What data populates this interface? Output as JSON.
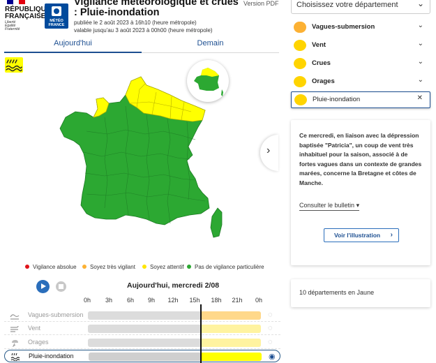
{
  "header": {
    "rf_name": "RÉPUBLIQUE\nFRANÇAISE",
    "rf_motto": "Liberté\nÉgalité\nFraternité",
    "mf_name": "MÉTÉO\nFRANCE",
    "title": "Vigilance météorologique et crues : Pluie-inondation",
    "published": "publiée le 2 août 2023 à 16h10 (heure métropole)",
    "valid_until": "valable jusqu'au 3 août 2023 à 00h00 (heure métropole)",
    "pdf_link": "Version PDF"
  },
  "tabs": [
    {
      "label": "Aujourd'hui",
      "active": true
    },
    {
      "label": "Demain",
      "active": false
    }
  ],
  "map": {
    "active_phenomenon_icon": "rain-flood-icon",
    "colors": {
      "green": "#2ca832",
      "yellow": "#ffff00",
      "orange": "#fcb134",
      "red": "#e0131a"
    },
    "next_icon": "chevron-right-icon"
  },
  "legend": [
    {
      "label": "Vigilance absolue",
      "color": "#e0131a"
    },
    {
      "label": "Soyez très vigilant",
      "color": "#fcb134"
    },
    {
      "label": "Soyez attentif",
      "color": "#ffe600"
    },
    {
      "label": "Pas de vigilance particulière",
      "color": "#2ca832"
    }
  ],
  "timeline": {
    "day_title": "Aujourd'hui, mercredi 2/08",
    "hours": [
      "0h",
      "3h",
      "6h",
      "9h",
      "12h",
      "15h",
      "18h",
      "21h",
      "0h"
    ],
    "rows": [
      {
        "label": "Vagues-submersion",
        "icon": "waves-icon",
        "future_color": "#ffd88a",
        "active": false
      },
      {
        "label": "Vent",
        "icon": "wind-icon",
        "future_color": "#fff3a0",
        "active": false
      },
      {
        "label": "Orages",
        "icon": "storm-icon",
        "future_color": "#fff3a0",
        "active": false
      },
      {
        "label": "Pluie-inondation",
        "icon": "rain-flood-icon",
        "future_color": "#ffff00",
        "active": true
      }
    ]
  },
  "sidebar": {
    "dept_placeholder": "Choisissez votre département",
    "phenomena": [
      {
        "label": "Vagues-submersion",
        "icon": "waves-icon",
        "color": "#fcb134"
      },
      {
        "label": "Vent",
        "icon": "wind-icon",
        "color": "#ffd400"
      },
      {
        "label": "Crues",
        "icon": "flood-icon",
        "color": "#ffd400"
      },
      {
        "label": "Orages",
        "icon": "storm-icon",
        "color": "#ffd400"
      },
      {
        "label": "Pluie-inondation",
        "icon": "rain-flood-icon",
        "color": "#ffd400",
        "selected": true
      }
    ],
    "description": "Ce mercredi, en liaison avec la dépression baptisée \"Patricia\", un coup de vent très inhabituel pour la saison, associé à de fortes vagues dans un contexte de grandes marées, concerne la Bretagne et côtes de Manche.",
    "bulletin_label": "Consulter le bulletin",
    "illustration_label": "Voir l'illustration",
    "count_text": "10 départements en Jaune"
  }
}
